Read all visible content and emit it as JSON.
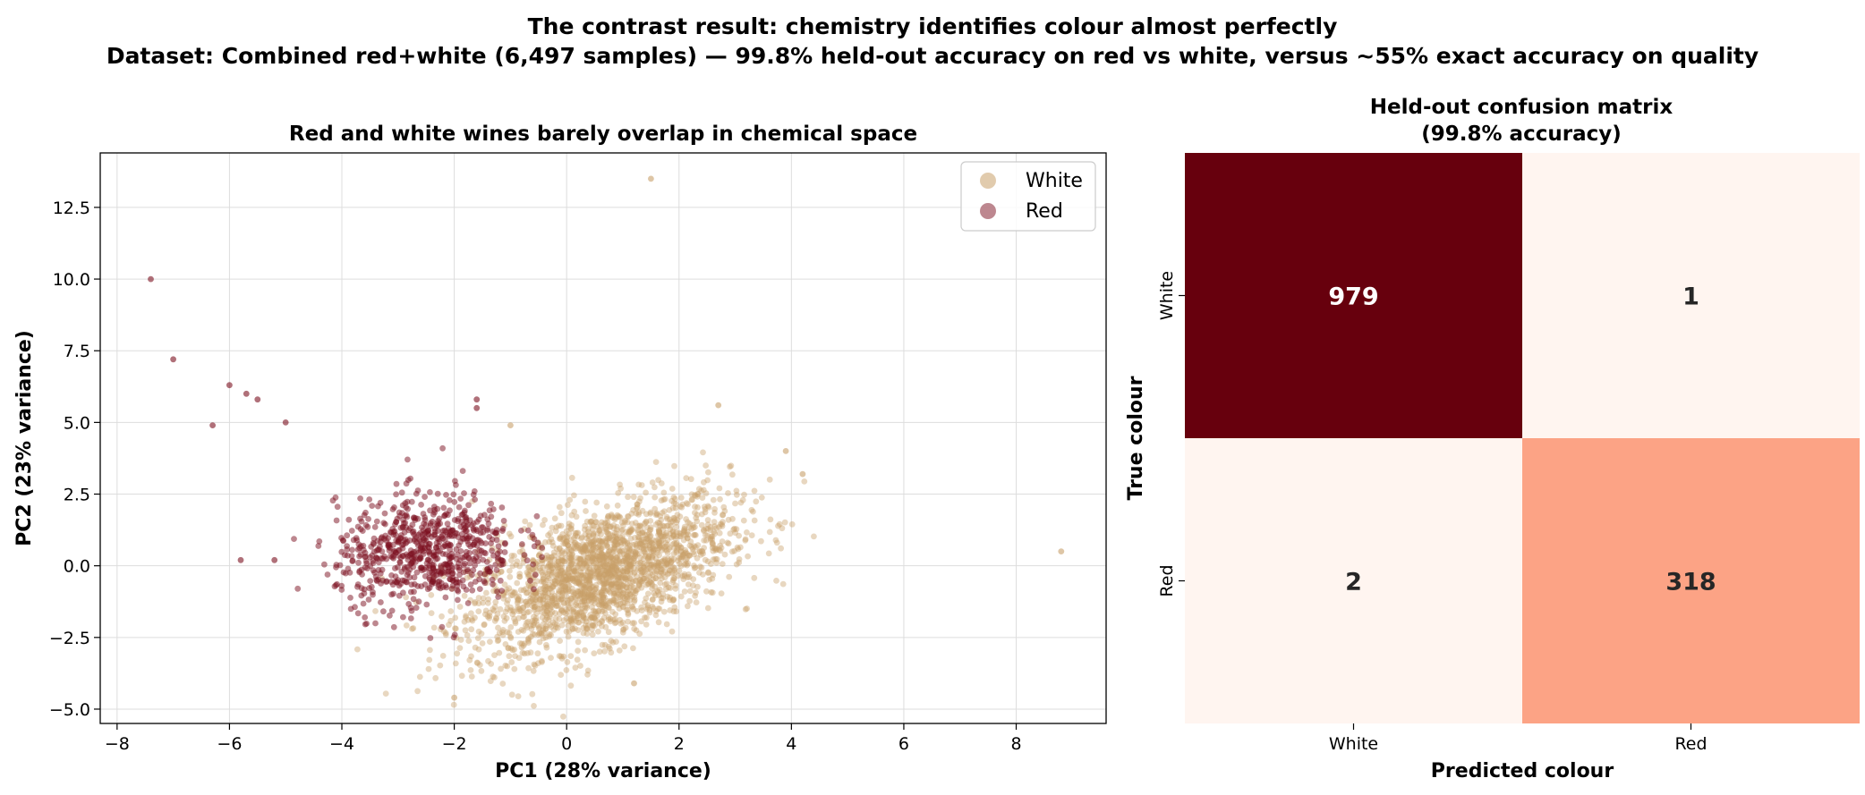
{
  "figure": {
    "title_line1": "The contrast result: chemistry identifies colour almost perfectly",
    "title_line2": "Dataset: Combined red+white (6,497 samples) — 99.8% held-out accuracy on red vs white, versus ~55% exact accuracy on quality"
  },
  "chart_data": [
    {
      "type": "scatter",
      "title": "Red and white wines barely overlap in chemical space",
      "xlabel": "PC1 (28% variance)",
      "ylabel": "PC2 (23% variance)",
      "xlim": [
        -8.3,
        9.6
      ],
      "ylim": [
        -5.5,
        14.4
      ],
      "xticks": [
        -8,
        -6,
        -4,
        -2,
        0,
        2,
        4,
        6,
        8
      ],
      "xtick_labels": [
        "−8",
        "−6",
        "−4",
        "−2",
        "0",
        "2",
        "4",
        "6",
        "8"
      ],
      "yticks": [
        -5.0,
        -2.5,
        0.0,
        2.5,
        5.0,
        7.5,
        10.0,
        12.5
      ],
      "ytick_labels": [
        "−5.0",
        "−2.5",
        "0.0",
        "2.5",
        "5.0",
        "7.5",
        "10.0",
        "12.5"
      ],
      "grid": true,
      "legend_position": "top-right",
      "series": [
        {
          "name": "White",
          "color": "#c8a06a",
          "approx_count": 4898,
          "center": [
            0.6,
            -0.3
          ],
          "spread": [
            1.15,
            1.35
          ],
          "correlation": 0.55,
          "outliers": [
            [
              1.5,
              13.5
            ],
            [
              8.8,
              0.5
            ],
            [
              4.2,
              3.2
            ],
            [
              3.9,
              4.0
            ],
            [
              -2.0,
              -4.6
            ],
            [
              -1.0,
              4.9
            ],
            [
              2.7,
              5.6
            ],
            [
              1.2,
              -4.1
            ]
          ]
        },
        {
          "name": "Red",
          "color": "#7b1020",
          "approx_count": 1599,
          "center": [
            -2.5,
            0.5
          ],
          "spread": [
            0.8,
            1.0
          ],
          "correlation": 0.15,
          "outliers": [
            [
              -7.4,
              10.0
            ],
            [
              -7.0,
              7.2
            ],
            [
              -6.0,
              6.3
            ],
            [
              -5.7,
              6.0
            ],
            [
              -5.5,
              5.8
            ],
            [
              -6.3,
              4.9
            ],
            [
              -5.0,
              5.0
            ],
            [
              -1.6,
              5.8
            ],
            [
              -1.6,
              5.5
            ],
            [
              -5.2,
              0.2
            ],
            [
              -5.8,
              0.2
            ]
          ]
        }
      ]
    },
    {
      "type": "heatmap",
      "title_line1": "Held-out confusion matrix",
      "title_line2": "(99.8% accuracy)",
      "xlabel": "Predicted colour",
      "ylabel": "True colour",
      "row_labels": [
        "White",
        "Red"
      ],
      "col_labels": [
        "White",
        "Red"
      ],
      "matrix": [
        [
          979,
          1
        ],
        [
          2,
          318
        ]
      ],
      "colormap": "Reds",
      "vmin": 1,
      "vmax": 979
    }
  ]
}
